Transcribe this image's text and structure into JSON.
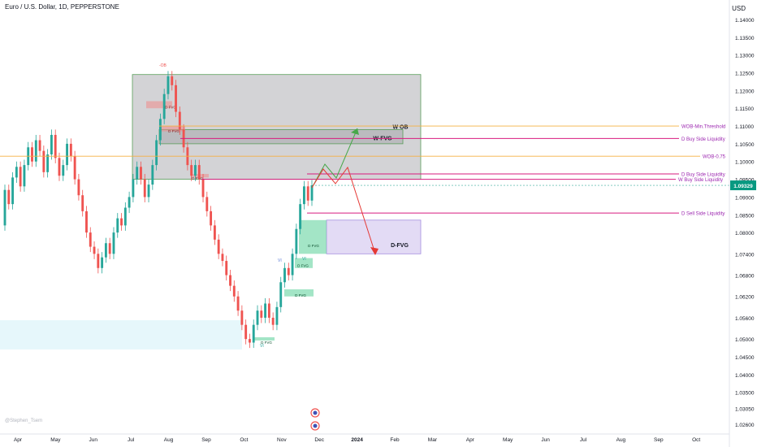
{
  "header": {
    "title": "Euro / U.S. Dollar, 1D, PEPPERSTONE",
    "currency": "USD",
    "watermark": "@Stephen_Tsem"
  },
  "colors": {
    "up": "#26a69a",
    "down": "#ef5350",
    "green_zone": "#66d4a0",
    "red_zone": "#f08a8a",
    "gray_zone": "#9e9ea4",
    "purple_zone": "#d9cff2",
    "magenta_line": "#d81b7f",
    "orange_line": "#f5b042",
    "label_purple": "#9c27b0",
    "price_badge": "#089981"
  },
  "chart_data": {
    "type": "candlestick",
    "symbol": "Euro / U.S. Dollar",
    "timeframe": "1D",
    "source": "PEPPERSTONE",
    "price_axis": {
      "currency": "USD",
      "ticks": [
        "1.14000",
        "1.13500",
        "1.13000",
        "1.12500",
        "1.12000",
        "1.11500",
        "1.11000",
        "1.10500",
        "1.10000",
        "1.09500",
        "1.09000",
        "1.08500",
        "1.08000",
        "1.07400",
        "1.06800",
        "1.06200",
        "1.05600",
        "1.05000",
        "1.04500",
        "1.04000",
        "1.03500",
        "1.03050",
        "1.02600"
      ]
    },
    "time_axis": {
      "ticks": [
        "Apr",
        "May",
        "Jun",
        "Jul",
        "Aug",
        "Sep",
        "Oct",
        "Nov",
        "Dec",
        "2024",
        "Feb",
        "Mar",
        "Apr",
        "May",
        "Jun",
        "Jul",
        "Aug",
        "Sep",
        "Oct"
      ]
    },
    "last_price": "1.09329",
    "series": [
      {
        "open": 1.082,
        "close": 1.092
      },
      {
        "open": 1.092,
        "close": 1.088
      },
      {
        "open": 1.088,
        "close": 1.0955
      },
      {
        "open": 1.0955,
        "close": 1.0985
      },
      {
        "open": 1.0985,
        "close": 1.093
      },
      {
        "open": 1.093,
        "close": 1.099
      },
      {
        "open": 1.099,
        "close": 1.104
      },
      {
        "open": 1.104,
        "close": 1.1
      },
      {
        "open": 1.1,
        "close": 1.106
      },
      {
        "open": 1.106,
        "close": 1.103
      },
      {
        "open": 1.103,
        "close": 1.097
      },
      {
        "open": 1.097,
        "close": 1.102
      },
      {
        "open": 1.102,
        "close": 1.1075
      },
      {
        "open": 1.1075,
        "close": 1.101
      },
      {
        "open": 1.101,
        "close": 1.096
      },
      {
        "open": 1.096,
        "close": 1.099
      },
      {
        "open": 1.099,
        "close": 1.105
      },
      {
        "open": 1.105,
        "close": 1.1015
      },
      {
        "open": 1.1015,
        "close": 1.095
      },
      {
        "open": 1.095,
        "close": 1.0905
      },
      {
        "open": 1.0905,
        "close": 1.086
      },
      {
        "open": 1.086,
        "close": 1.08
      },
      {
        "open": 1.08,
        "close": 1.076
      },
      {
        "open": 1.076,
        "close": 1.074
      },
      {
        "open": 1.074,
        "close": 1.07
      },
      {
        "open": 1.07,
        "close": 1.073
      },
      {
        "open": 1.073,
        "close": 1.077
      },
      {
        "open": 1.077,
        "close": 1.074
      },
      {
        "open": 1.074,
        "close": 1.08
      },
      {
        "open": 1.08,
        "close": 1.084
      },
      {
        "open": 1.084,
        "close": 1.082
      },
      {
        "open": 1.082,
        "close": 1.087
      },
      {
        "open": 1.087,
        "close": 1.09
      },
      {
        "open": 1.09,
        "close": 1.095
      },
      {
        "open": 1.095,
        "close": 1.0985
      },
      {
        "open": 1.0985,
        "close": 1.095
      },
      {
        "open": 1.095,
        "close": 1.09
      },
      {
        "open": 1.09,
        "close": 1.0935
      },
      {
        "open": 1.0935,
        "close": 1.099
      },
      {
        "open": 1.099,
        "close": 1.106
      },
      {
        "open": 1.106,
        "close": 1.112
      },
      {
        "open": 1.112,
        "close": 1.119
      },
      {
        "open": 1.119,
        "close": 1.124
      },
      {
        "open": 1.124,
        "close": 1.1215
      },
      {
        "open": 1.1215,
        "close": 1.114
      },
      {
        "open": 1.114,
        "close": 1.109
      },
      {
        "open": 1.109,
        "close": 1.104
      },
      {
        "open": 1.104,
        "close": 1.099
      },
      {
        "open": 1.099,
        "close": 1.096
      },
      {
        "open": 1.096,
        "close": 1.099
      },
      {
        "open": 1.099,
        "close": 1.095
      },
      {
        "open": 1.095,
        "close": 1.09
      },
      {
        "open": 1.09,
        "close": 1.086
      },
      {
        "open": 1.086,
        "close": 1.082
      },
      {
        "open": 1.082,
        "close": 1.078
      },
      {
        "open": 1.078,
        "close": 1.074
      },
      {
        "open": 1.074,
        "close": 1.072
      },
      {
        "open": 1.072,
        "close": 1.068
      },
      {
        "open": 1.068,
        "close": 1.065
      },
      {
        "open": 1.065,
        "close": 1.062
      },
      {
        "open": 1.062,
        "close": 1.058
      },
      {
        "open": 1.058,
        "close": 1.054
      },
      {
        "open": 1.054,
        "close": 1.05
      },
      {
        "open": 1.05,
        "close": 1.049
      },
      {
        "open": 1.049,
        "close": 1.054
      },
      {
        "open": 1.054,
        "close": 1.058
      },
      {
        "open": 1.058,
        "close": 1.056
      },
      {
        "open": 1.056,
        "close": 1.06
      },
      {
        "open": 1.06,
        "close": 1.056
      },
      {
        "open": 1.056,
        "close": 1.054
      },
      {
        "open": 1.054,
        "close": 1.059
      },
      {
        "open": 1.059,
        "close": 1.066
      },
      {
        "open": 1.066,
        "close": 1.07
      },
      {
        "open": 1.07,
        "close": 1.068
      },
      {
        "open": 1.068,
        "close": 1.074
      },
      {
        "open": 1.074,
        "close": 1.081
      },
      {
        "open": 1.081,
        "close": 1.088
      },
      {
        "open": 1.088,
        "close": 1.093
      },
      {
        "open": 1.093,
        "close": 1.089
      },
      {
        "open": 1.089,
        "close": 1.0933
      }
    ],
    "annotations": {
      "zones": [
        {
          "label": "W OB",
          "style": "gray"
        },
        {
          "label": "W-FVG",
          "style": "gray"
        },
        {
          "label": "D FVG",
          "style": "red"
        },
        {
          "label": "D FVG",
          "style": "red"
        },
        {
          "label": "D FVG",
          "style": "red"
        },
        {
          "label": "D-FVG",
          "style": "purple"
        },
        {
          "label": "D FVG",
          "style": "green"
        },
        {
          "label": "D FVG",
          "style": "green"
        },
        {
          "label": "D FVG",
          "style": "green"
        },
        {
          "label": "D FVG",
          "style": "green"
        }
      ],
      "levels": [
        {
          "label": "WOB-Min.Threshold",
          "price": 1.11,
          "color": "orange"
        },
        {
          "label": "D Buy Side Liquidity",
          "price": 1.1065,
          "color": "magenta"
        },
        {
          "label": "WOB-0.75",
          "price": 1.1015,
          "color": "orange"
        },
        {
          "label": "D Buy Side Liquidity",
          "price": 1.0965,
          "color": "magenta"
        },
        {
          "label": "W Buy Side Liquidity",
          "price": 1.095,
          "color": "magenta"
        },
        {
          "label": "D Sell Side Liquidity",
          "price": 1.0855,
          "color": "magenta"
        }
      ],
      "small_labels": [
        "-OB",
        "VI",
        "VI",
        "VI"
      ]
    }
  }
}
